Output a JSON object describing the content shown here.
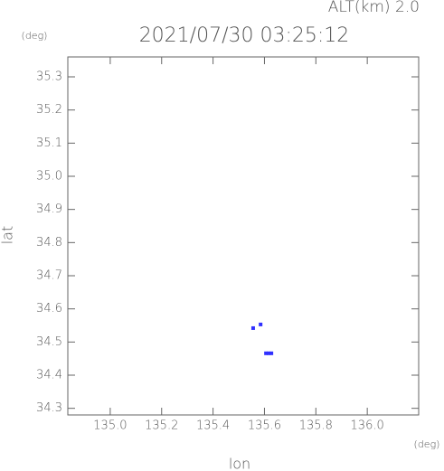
{
  "chart_data": {
    "type": "scatter",
    "title": "2021/07/30 03:25:12",
    "annotation": "ALT(km) 2.0",
    "x_label": "lon",
    "y_label": "lat",
    "x_unit": "(deg)",
    "y_unit": "(deg)",
    "series": [
      {
        "color": "#3030ff",
        "x": [
          135.556,
          135.585,
          135.606,
          135.616,
          135.627
        ],
        "values": [
          34.542,
          34.553,
          34.466,
          34.466,
          34.466
        ]
      }
    ],
    "xlim": [
      134.835,
      136.2
    ],
    "ylim": [
      34.28,
      35.36
    ],
    "xticks": [
      {
        "value": 135,
        "label": "135.0"
      },
      135.2,
      135.4,
      135.6,
      135.8,
      {
        "value": 136,
        "label": "136.0"
      }
    ],
    "yticks": [
      34.3,
      34.4,
      34.5,
      34.6,
      34.7,
      34.8,
      34.9,
      {
        "value": 35,
        "label": "35.0"
      },
      35.1,
      35.2,
      35.3
    ],
    "grid": false
  }
}
